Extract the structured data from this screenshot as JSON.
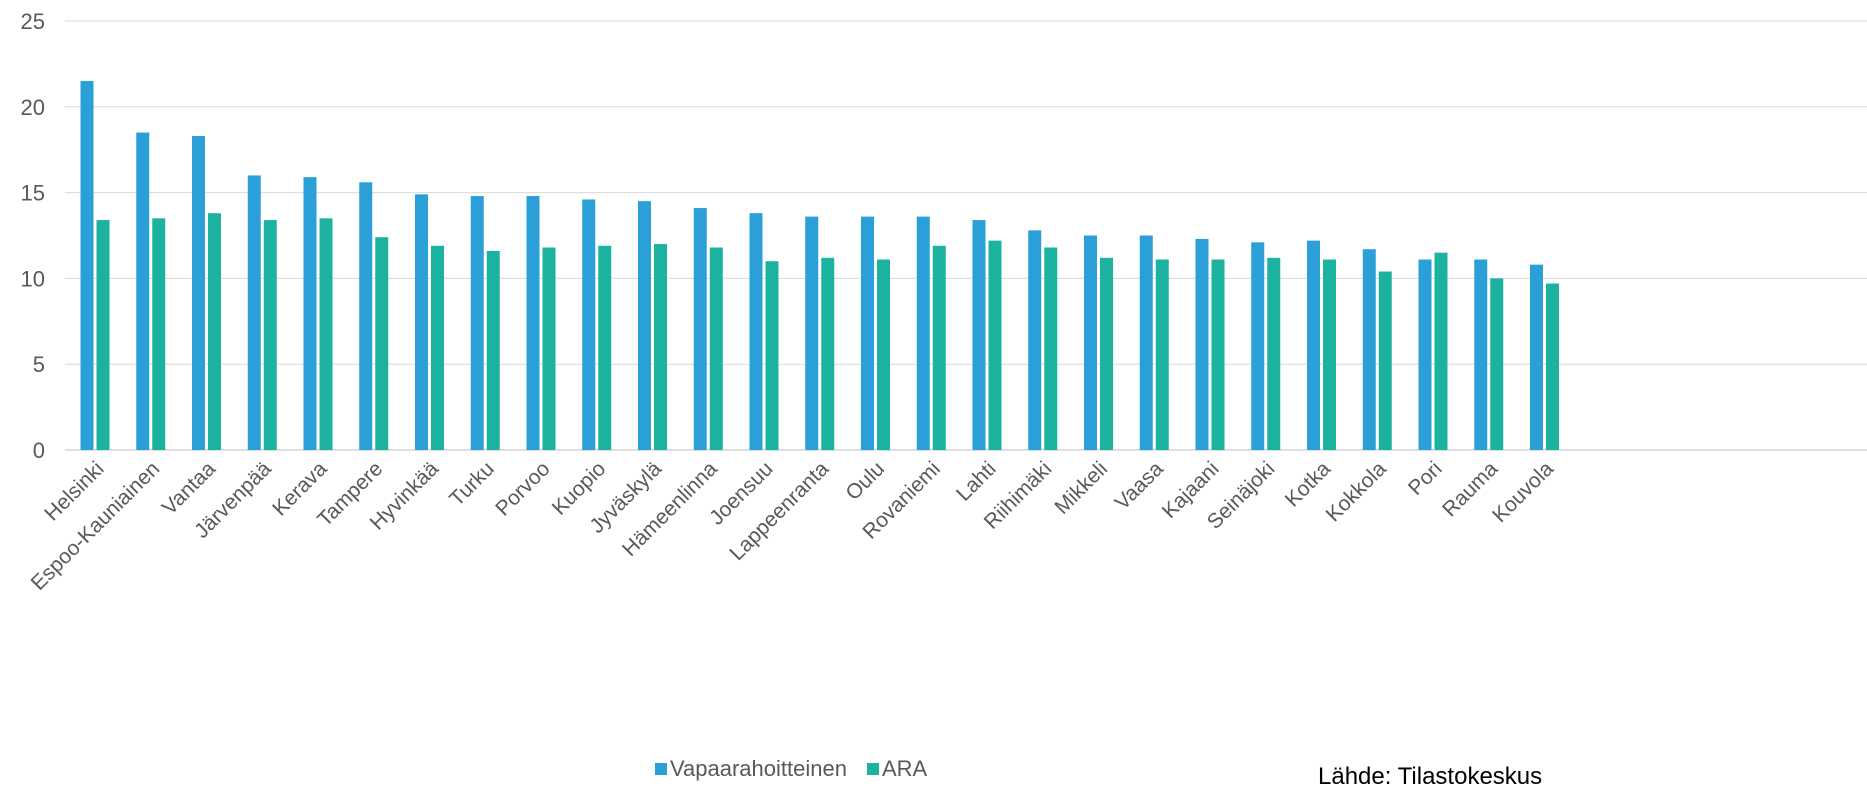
{
  "chart_data": {
    "type": "bar",
    "title": "",
    "xlabel": "",
    "ylabel": "",
    "ylim": [
      0,
      25
    ],
    "yticks": [
      0,
      5,
      10,
      15,
      20,
      25
    ],
    "grid": true,
    "legend_position": "bottom",
    "categories": [
      "Helsinki",
      "Espoo-Kauniainen",
      "Vantaa",
      "Järvenpää",
      "Kerava",
      "Tampere",
      "Hyvinkää",
      "Turku",
      "Porvoo",
      "Kuopio",
      "Jyväskylä",
      "Hämeenlinna",
      "Joensuu",
      "Lappeenranta",
      "Oulu",
      "Rovaniemi",
      "Lahti",
      "Riihimäki",
      "Mikkeli",
      "Vaasa",
      "Kajaani",
      "Seinäjoki",
      "Kotka",
      "Kokkola",
      "Pori",
      "Rauma",
      "Kouvola"
    ],
    "series": [
      {
        "name": "Vapaarahoitteinen",
        "color": "#2a9fd8",
        "values": [
          21.5,
          18.5,
          18.3,
          16.0,
          15.9,
          15.6,
          14.9,
          14.8,
          14.8,
          14.6,
          14.5,
          14.1,
          13.8,
          13.6,
          13.6,
          13.6,
          13.4,
          12.8,
          12.5,
          12.5,
          12.3,
          12.1,
          12.2,
          11.7,
          11.1,
          11.1,
          10.8
        ]
      },
      {
        "name": "ARA",
        "color": "#1bb3a0",
        "values": [
          13.4,
          13.5,
          13.8,
          13.4,
          13.5,
          12.4,
          11.9,
          11.6,
          11.8,
          11.9,
          12.0,
          11.8,
          11.0,
          11.2,
          11.1,
          11.9,
          12.2,
          11.8,
          11.2,
          11.1,
          11.1,
          11.2,
          11.1,
          10.4,
          11.5,
          10.0,
          9.7
        ]
      }
    ]
  },
  "source_note": "Lähde: Tilastokeskus"
}
